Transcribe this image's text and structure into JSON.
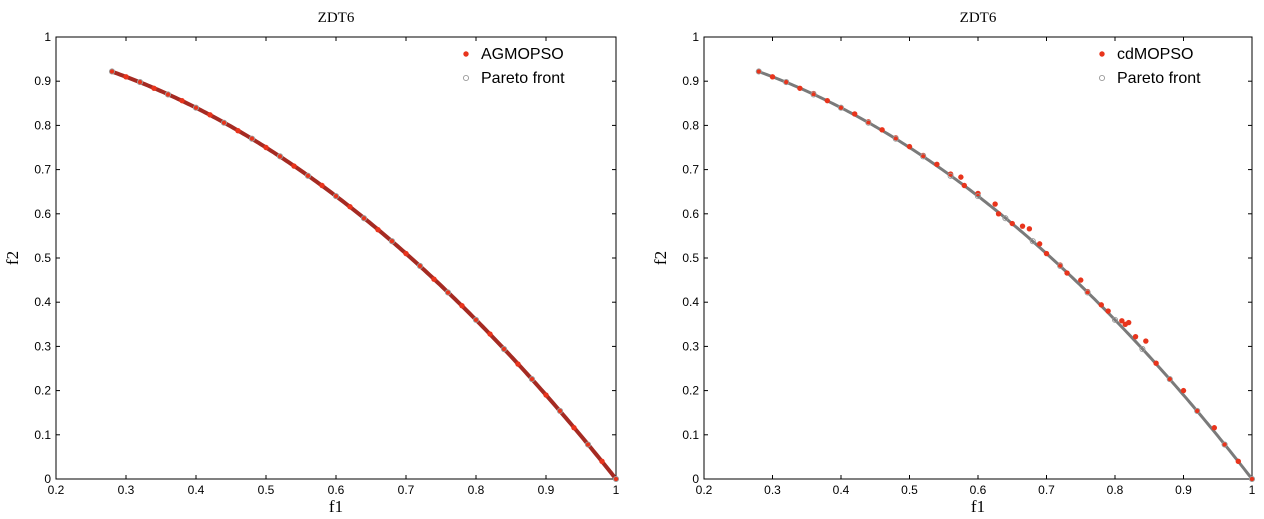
{
  "chart_data": [
    {
      "type": "scatter",
      "title": "ZDT6",
      "xlabel": "f1",
      "ylabel": "f2",
      "xlim": [
        0.2,
        1.0
      ],
      "ylim": [
        0,
        1.0
      ],
      "xticks": [
        "0.2",
        "0.3",
        "0.4",
        "0.5",
        "0.6",
        "0.7",
        "0.8",
        "0.9",
        "1"
      ],
      "yticks": [
        "0",
        "0.1",
        "0.2",
        "0.3",
        "0.4",
        "0.5",
        "0.6",
        "0.7",
        "0.8",
        "0.9",
        "1"
      ],
      "grid": false,
      "legend_position": "top-right",
      "front": {
        "f1_min": 0.2807753,
        "f1_max": 1.0,
        "relation": "f2 = 1 - f1^2"
      },
      "series": [
        {
          "name": "AGMOPSO",
          "marker": "filled-dot",
          "color": "#e8341c",
          "points": [
            [
              0.28,
              0.922
            ],
            [
              0.3,
              0.91
            ],
            [
              0.32,
              0.898
            ],
            [
              0.34,
              0.884
            ],
            [
              0.36,
              0.87
            ],
            [
              0.38,
              0.856
            ],
            [
              0.4,
              0.84
            ],
            [
              0.42,
              0.824
            ],
            [
              0.44,
              0.806
            ],
            [
              0.46,
              0.788
            ],
            [
              0.48,
              0.77
            ],
            [
              0.5,
              0.75
            ],
            [
              0.52,
              0.73
            ],
            [
              0.54,
              0.708
            ],
            [
              0.56,
              0.686
            ],
            [
              0.58,
              0.664
            ],
            [
              0.6,
              0.64
            ],
            [
              0.62,
              0.616
            ],
            [
              0.64,
              0.59
            ],
            [
              0.66,
              0.564
            ],
            [
              0.68,
              0.538
            ],
            [
              0.7,
              0.51
            ],
            [
              0.72,
              0.482
            ],
            [
              0.74,
              0.452
            ],
            [
              0.76,
              0.422
            ],
            [
              0.78,
              0.392
            ],
            [
              0.8,
              0.36
            ],
            [
              0.82,
              0.328
            ],
            [
              0.84,
              0.294
            ],
            [
              0.86,
              0.26
            ],
            [
              0.88,
              0.226
            ],
            [
              0.9,
              0.19
            ],
            [
              0.92,
              0.154
            ],
            [
              0.94,
              0.116
            ],
            [
              0.96,
              0.078
            ],
            [
              0.98,
              0.04
            ],
            [
              1.0,
              0.0
            ]
          ]
        },
        {
          "name": "Pareto front",
          "marker": "open-circle",
          "color": "#9a9a9a",
          "points": [
            [
              0.28,
              0.922
            ],
            [
              0.32,
              0.898
            ],
            [
              0.36,
              0.87
            ],
            [
              0.4,
              0.84
            ],
            [
              0.44,
              0.806
            ],
            [
              0.48,
              0.77
            ],
            [
              0.52,
              0.73
            ],
            [
              0.56,
              0.686
            ],
            [
              0.6,
              0.64
            ],
            [
              0.64,
              0.59
            ],
            [
              0.68,
              0.538
            ],
            [
              0.72,
              0.482
            ],
            [
              0.76,
              0.422
            ],
            [
              0.8,
              0.36
            ],
            [
              0.84,
              0.294
            ],
            [
              0.88,
              0.226
            ],
            [
              0.92,
              0.154
            ],
            [
              0.96,
              0.078
            ],
            [
              1.0,
              0.0
            ]
          ]
        }
      ]
    },
    {
      "type": "scatter",
      "title": "ZDT6",
      "xlabel": "f1",
      "ylabel": "f2",
      "xlim": [
        0.2,
        1.0
      ],
      "ylim": [
        0,
        1.0
      ],
      "xticks": [
        "0.2",
        "0.3",
        "0.4",
        "0.5",
        "0.6",
        "0.7",
        "0.8",
        "0.9",
        "1"
      ],
      "yticks": [
        "0",
        "0.1",
        "0.2",
        "0.3",
        "0.4",
        "0.5",
        "0.6",
        "0.7",
        "0.8",
        "0.9",
        "1"
      ],
      "grid": false,
      "legend_position": "top-right",
      "front": {
        "f1_min": 0.2807753,
        "f1_max": 1.0,
        "relation": "f2 = 1 - f1^2"
      },
      "series": [
        {
          "name": "cdMOPSO",
          "marker": "filled-dot",
          "color": "#e8341c",
          "points": [
            [
              0.28,
              0.922
            ],
            [
              0.3,
              0.91
            ],
            [
              0.32,
              0.898
            ],
            [
              0.34,
              0.884
            ],
            [
              0.36,
              0.872
            ],
            [
              0.38,
              0.856
            ],
            [
              0.4,
              0.84
            ],
            [
              0.42,
              0.826
            ],
            [
              0.44,
              0.808
            ],
            [
              0.46,
              0.79
            ],
            [
              0.48,
              0.772
            ],
            [
              0.5,
              0.752
            ],
            [
              0.52,
              0.732
            ],
            [
              0.54,
              0.712
            ],
            [
              0.56,
              0.69
            ],
            [
              0.575,
              0.683
            ],
            [
              0.58,
              0.664
            ],
            [
              0.6,
              0.646
            ],
            [
              0.625,
              0.622
            ],
            [
              0.63,
              0.6
            ],
            [
              0.65,
              0.578
            ],
            [
              0.665,
              0.572
            ],
            [
              0.675,
              0.566
            ],
            [
              0.69,
              0.532
            ],
            [
              0.7,
              0.51
            ],
            [
              0.72,
              0.484
            ],
            [
              0.73,
              0.466
            ],
            [
              0.75,
              0.45
            ],
            [
              0.76,
              0.424
            ],
            [
              0.78,
              0.394
            ],
            [
              0.79,
              0.38
            ],
            [
              0.81,
              0.358
            ],
            [
              0.815,
              0.35
            ],
            [
              0.82,
              0.354
            ],
            [
              0.83,
              0.322
            ],
            [
              0.845,
              0.312
            ],
            [
              0.86,
              0.262
            ],
            [
              0.88,
              0.226
            ],
            [
              0.9,
              0.2
            ],
            [
              0.92,
              0.154
            ],
            [
              0.945,
              0.116
            ],
            [
              0.96,
              0.078
            ],
            [
              0.98,
              0.04
            ],
            [
              1.0,
              0.0
            ]
          ]
        },
        {
          "name": "Pareto front",
          "marker": "open-circle",
          "color": "#9a9a9a",
          "points": [
            [
              0.28,
              0.922
            ],
            [
              0.32,
              0.898
            ],
            [
              0.36,
              0.87
            ],
            [
              0.4,
              0.84
            ],
            [
              0.44,
              0.806
            ],
            [
              0.48,
              0.77
            ],
            [
              0.52,
              0.73
            ],
            [
              0.56,
              0.686
            ],
            [
              0.6,
              0.64
            ],
            [
              0.64,
              0.59
            ],
            [
              0.68,
              0.538
            ],
            [
              0.72,
              0.482
            ],
            [
              0.76,
              0.422
            ],
            [
              0.8,
              0.36
            ],
            [
              0.84,
              0.294
            ],
            [
              0.88,
              0.226
            ],
            [
              0.92,
              0.154
            ],
            [
              0.96,
              0.078
            ],
            [
              1.0,
              0.0
            ]
          ]
        }
      ]
    }
  ]
}
